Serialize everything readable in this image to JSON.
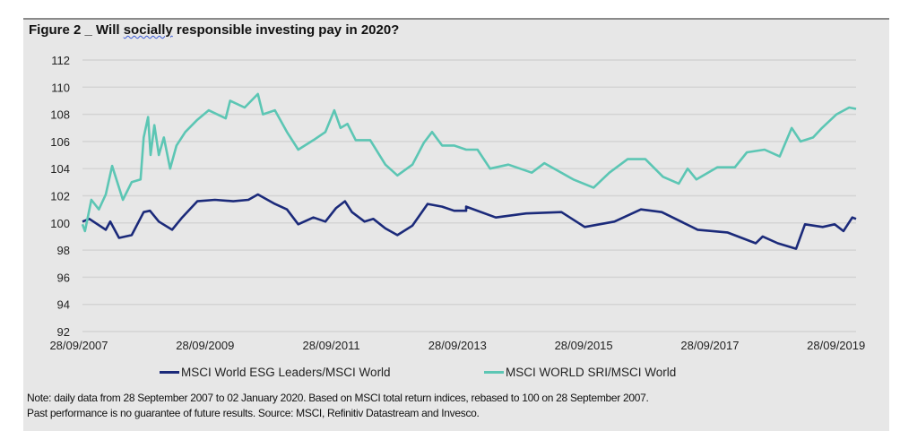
{
  "title": {
    "prefix": "Figure 2 _ Will ",
    "underlined": "socially",
    "suffix": " responsible investing pay in 2020?"
  },
  "note": {
    "line1": "Note: daily data from 28 September 2007 to 02 January 2020. Based on MSCI total return indices, rebased to 100 on 28 September 2007.",
    "line2": "Past performance is no guarantee of future results. Source: MSCI, Refinitiv Datastream and Invesco."
  },
  "chart_data": {
    "type": "line",
    "title": "Figure 2 _ Will socially responsible investing pay in 2020?",
    "xlabel": "",
    "ylabel": "",
    "ylim": [
      92,
      112
    ],
    "xlim": [
      2007.74,
      2020.0
    ],
    "yticks": [
      92,
      94,
      96,
      98,
      100,
      102,
      104,
      106,
      108,
      110,
      112
    ],
    "xticks": [
      {
        "x": 2007.74,
        "label": "28/09/2007"
      },
      {
        "x": 2009.74,
        "label": "28/09/2009"
      },
      {
        "x": 2011.74,
        "label": "28/09/2011"
      },
      {
        "x": 2013.74,
        "label": "28/09/2013"
      },
      {
        "x": 2015.74,
        "label": "28/09/2015"
      },
      {
        "x": 2017.74,
        "label": "28/09/2017"
      },
      {
        "x": 2019.74,
        "label": "28/09/2019"
      }
    ],
    "grid": true,
    "legend_position": "bottom",
    "series": [
      {
        "name": "MSCI World ESG Leaders/MSCI World",
        "color": "#1b2a7a",
        "points": [
          [
            2007.74,
            100.1
          ],
          [
            2007.85,
            100.3
          ],
          [
            2008.11,
            99.5
          ],
          [
            2008.18,
            100.1
          ],
          [
            2008.32,
            98.9
          ],
          [
            2008.52,
            99.1
          ],
          [
            2008.71,
            100.8
          ],
          [
            2008.81,
            100.9
          ],
          [
            2008.95,
            100.1
          ],
          [
            2009.16,
            99.5
          ],
          [
            2009.32,
            100.4
          ],
          [
            2009.56,
            101.6
          ],
          [
            2009.84,
            101.7
          ],
          [
            2010.13,
            101.6
          ],
          [
            2010.37,
            101.7
          ],
          [
            2010.52,
            102.1
          ],
          [
            2010.79,
            101.4
          ],
          [
            2010.98,
            101.0
          ],
          [
            2011.16,
            99.9
          ],
          [
            2011.4,
            100.4
          ],
          [
            2011.59,
            100.1
          ],
          [
            2011.76,
            101.1
          ],
          [
            2011.9,
            101.6
          ],
          [
            2012.01,
            100.8
          ],
          [
            2012.21,
            100.1
          ],
          [
            2012.35,
            100.3
          ],
          [
            2012.54,
            99.6
          ],
          [
            2012.73,
            99.1
          ],
          [
            2012.97,
            99.8
          ],
          [
            2013.21,
            101.4
          ],
          [
            2013.44,
            101.2
          ],
          [
            2013.63,
            100.9
          ],
          [
            2013.82,
            100.9
          ],
          [
            2013.82,
            101.2
          ],
          [
            2014.29,
            100.4
          ],
          [
            2014.77,
            100.7
          ],
          [
            2015.33,
            100.8
          ],
          [
            2015.7,
            99.7
          ],
          [
            2016.17,
            100.1
          ],
          [
            2016.59,
            101.0
          ],
          [
            2016.92,
            100.8
          ],
          [
            2017.49,
            99.5
          ],
          [
            2017.96,
            99.3
          ],
          [
            2018.41,
            98.5
          ],
          [
            2018.52,
            99.0
          ],
          [
            2018.76,
            98.5
          ],
          [
            2019.05,
            98.1
          ],
          [
            2019.19,
            99.9
          ],
          [
            2019.47,
            99.7
          ],
          [
            2019.66,
            99.9
          ],
          [
            2019.8,
            99.4
          ],
          [
            2019.94,
            100.4
          ],
          [
            2020.0,
            100.3
          ]
        ]
      },
      {
        "name": "MSCI WORLD SRI/MSCI World",
        "color": "#5cc6b4",
        "points": [
          [
            2007.74,
            99.9
          ],
          [
            2007.78,
            99.4
          ],
          [
            2007.88,
            101.7
          ],
          [
            2008.0,
            101.0
          ],
          [
            2008.11,
            102.1
          ],
          [
            2008.21,
            104.2
          ],
          [
            2008.38,
            101.7
          ],
          [
            2008.52,
            103.0
          ],
          [
            2008.66,
            103.2
          ],
          [
            2008.71,
            106.3
          ],
          [
            2008.78,
            107.8
          ],
          [
            2008.82,
            105.0
          ],
          [
            2008.88,
            107.2
          ],
          [
            2008.95,
            105.0
          ],
          [
            2009.03,
            106.3
          ],
          [
            2009.13,
            104.0
          ],
          [
            2009.23,
            105.7
          ],
          [
            2009.37,
            106.7
          ],
          [
            2009.56,
            107.6
          ],
          [
            2009.74,
            108.3
          ],
          [
            2010.01,
            107.7
          ],
          [
            2010.08,
            109.0
          ],
          [
            2010.31,
            108.5
          ],
          [
            2010.52,
            109.5
          ],
          [
            2010.6,
            108.0
          ],
          [
            2010.79,
            108.3
          ],
          [
            2010.98,
            106.7
          ],
          [
            2011.16,
            105.4
          ],
          [
            2011.4,
            106.1
          ],
          [
            2011.59,
            106.7
          ],
          [
            2011.73,
            108.3
          ],
          [
            2011.83,
            107.0
          ],
          [
            2011.94,
            107.3
          ],
          [
            2012.07,
            106.1
          ],
          [
            2012.3,
            106.1
          ],
          [
            2012.54,
            104.3
          ],
          [
            2012.73,
            103.5
          ],
          [
            2012.97,
            104.3
          ],
          [
            2013.15,
            105.9
          ],
          [
            2013.28,
            106.7
          ],
          [
            2013.44,
            105.7
          ],
          [
            2013.63,
            105.7
          ],
          [
            2013.82,
            105.4
          ],
          [
            2014.0,
            105.4
          ],
          [
            2014.2,
            104.0
          ],
          [
            2014.49,
            104.3
          ],
          [
            2014.86,
            103.7
          ],
          [
            2015.06,
            104.4
          ],
          [
            2015.52,
            103.2
          ],
          [
            2015.84,
            102.6
          ],
          [
            2016.09,
            103.7
          ],
          [
            2016.38,
            104.7
          ],
          [
            2016.66,
            104.7
          ],
          [
            2016.94,
            103.4
          ],
          [
            2017.19,
            102.9
          ],
          [
            2017.33,
            104.0
          ],
          [
            2017.47,
            103.2
          ],
          [
            2017.8,
            104.1
          ],
          [
            2018.08,
            104.1
          ],
          [
            2018.27,
            105.2
          ],
          [
            2018.55,
            105.4
          ],
          [
            2018.79,
            104.9
          ],
          [
            2018.98,
            107.0
          ],
          [
            2019.12,
            106.0
          ],
          [
            2019.32,
            106.3
          ],
          [
            2019.46,
            107.0
          ],
          [
            2019.69,
            108.0
          ],
          [
            2019.89,
            108.5
          ],
          [
            2020.0,
            108.4
          ]
        ]
      }
    ]
  }
}
